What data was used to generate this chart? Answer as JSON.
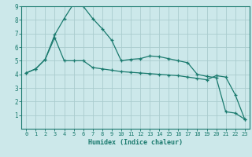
{
  "xlabel": "Humidex (Indice chaleur)",
  "ylabel": "",
  "bg_color": "#cce8ea",
  "grid_color": "#aaccce",
  "line_color": "#1a7a6e",
  "xlim": [
    -0.5,
    23.5
  ],
  "ylim": [
    0,
    9
  ],
  "xticks": [
    0,
    1,
    2,
    3,
    4,
    5,
    6,
    7,
    8,
    9,
    10,
    11,
    12,
    13,
    14,
    15,
    16,
    17,
    18,
    19,
    20,
    21,
    22,
    23
  ],
  "yticks": [
    1,
    2,
    3,
    4,
    5,
    6,
    7,
    8,
    9
  ],
  "series1_x": [
    0,
    1,
    2,
    3,
    4,
    5,
    6,
    7,
    8,
    9,
    10,
    11,
    12,
    13,
    14,
    15,
    16,
    17,
    18,
    19,
    20,
    21,
    22,
    23
  ],
  "series1_y": [
    4.1,
    4.4,
    5.1,
    6.7,
    5.0,
    5.0,
    5.0,
    4.5,
    4.4,
    4.3,
    4.2,
    4.15,
    4.1,
    4.05,
    4.0,
    3.95,
    3.9,
    3.8,
    3.7,
    3.6,
    3.9,
    3.8,
    2.5,
    0.7
  ],
  "series2_x": [
    0,
    1,
    2,
    3,
    4,
    5,
    6,
    7,
    8,
    9,
    10,
    11,
    12,
    13,
    14,
    15,
    16,
    17,
    18,
    19,
    20,
    21,
    22,
    23
  ],
  "series2_y": [
    4.1,
    4.4,
    5.1,
    6.9,
    8.1,
    9.2,
    9.0,
    8.1,
    7.35,
    6.5,
    5.0,
    5.1,
    5.15,
    5.35,
    5.3,
    5.15,
    5.0,
    4.85,
    4.0,
    3.85,
    3.75,
    1.25,
    1.15,
    0.7
  ]
}
